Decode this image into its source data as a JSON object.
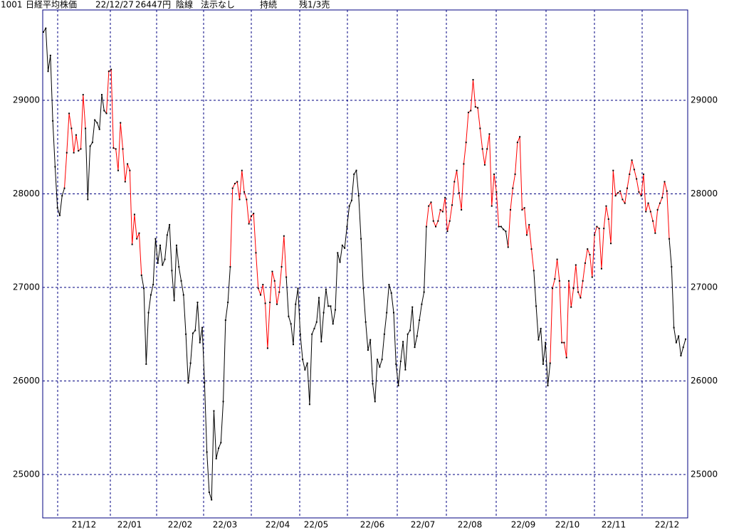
{
  "header": {
    "code": "1001",
    "name": "日経平均株価",
    "date": "22/12/27",
    "price": "26447円",
    "candle": "陰線",
    "signal": "法示なし",
    "status": "持続",
    "position": "残1/3売"
  },
  "chart_data": {
    "type": "line",
    "x_labels": [
      "21/12",
      "22/01",
      "22/02",
      "22/03",
      "22/04",
      "22/05",
      "22/06",
      "22/07",
      "22/08",
      "22/09",
      "22/10",
      "22/11",
      "22/12"
    ],
    "color": "#000000",
    "highlight_color": "#ff0000",
    "highlight_ranges": [
      [
        9,
        18
      ],
      [
        27,
        42
      ],
      [
        80,
        104
      ],
      [
        164,
        195
      ],
      [
        199,
        210
      ],
      [
        217,
        268
      ]
    ],
    "ylim": [
      24536,
      29966
    ],
    "yticks": [
      25000,
      26000,
      27000,
      28000,
      29000
    ],
    "grid": true,
    "values": [
      29730,
      29770,
      29310,
      29480,
      28780,
      28290,
      27850,
      27770,
      27980,
      28060,
      28440,
      28860,
      28700,
      28440,
      28630,
      28460,
      28480,
      29060,
      28700,
      27940,
      28510,
      28550,
      28790,
      28760,
      28690,
      29060,
      28890,
      28860,
      29310,
      29330,
      28490,
      28480,
      28250,
      28760,
      28480,
      28130,
      28320,
      28250,
      27460,
      27780,
      27520,
      27580,
      27130,
      26990,
      26180,
      26730,
      26920,
      27030,
      27520,
      27260,
      27450,
      27240,
      27300,
      27560,
      27670,
      27180,
      26860,
      27450,
      27220,
      27070,
      26920,
      26500,
      25980,
      26190,
      26510,
      26540,
      26840,
      26410,
      26570,
      25980,
      25240,
      24810,
      24730,
      25680,
      25170,
      25280,
      25340,
      25780,
      26650,
      26840,
      27220,
      28060,
      28110,
      28130,
      27940,
      28250,
      28020,
      27940,
      27680,
      27760,
      27790,
      27370,
      26990,
      26920,
      27030,
      26830,
      26350,
      26840,
      27170,
      27070,
      26820,
      26950,
      27220,
      27550,
      27110,
      26690,
      26610,
      26390,
      26820,
      26990,
      26500,
      26230,
      26120,
      26190,
      25750,
      26500,
      26560,
      26630,
      26890,
      26420,
      26730,
      26980,
      26800,
      26800,
      26610,
      26760,
      27370,
      27270,
      27450,
      27420,
      27650,
      27870,
      27930,
      28210,
      28250,
      27980,
      27520,
      26990,
      26630,
      26330,
      26440,
      25970,
      25780,
      26230,
      26150,
      26230,
      26500,
      26730,
      27030,
      26940,
      26730,
      26180,
      25950,
      26210,
      26420,
      26120,
      26500,
      26540,
      26790,
      26360,
      26480,
      26650,
      26820,
      26950,
      27650,
      27870,
      27910,
      27710,
      27650,
      27710,
      27830,
      27810,
      27960,
      27600,
      27710,
      27880,
      28130,
      28250,
      28010,
      27830,
      28320,
      28550,
      28870,
      28890,
      29220,
      28930,
      28920,
      28700,
      28480,
      28310,
      28480,
      28640,
      27870,
      28210,
      28020,
      27650,
      27650,
      27620,
      27600,
      27430,
      27830,
      28060,
      28210,
      28550,
      28610,
      27830,
      27850,
      27560,
      27670,
      27410,
      27180,
      26800,
      26440,
      26560,
      26180,
      26410,
      25950,
      26190,
      26990,
      27090,
      27300,
      27070,
      26410,
      26410,
      26250,
      27070,
      26790,
      26990,
      27240,
      26950,
      26890,
      27070,
      27260,
      27410,
      27350,
      27110,
      27560,
      27650,
      27630,
      27200,
      27630,
      27870,
      27730,
      27470,
      28250,
      27980,
      28010,
      28030,
      27940,
      27900,
      28060,
      28210,
      28360,
      28260,
      28160,
      28020,
      27980,
      28210,
      27810,
      27900,
      27810,
      27710,
      27580,
      27830,
      27900,
      27960,
      28130,
      28030,
      27520,
      27220,
      26570,
      26410,
      26480,
      26270,
      26360,
      26447
    ]
  }
}
